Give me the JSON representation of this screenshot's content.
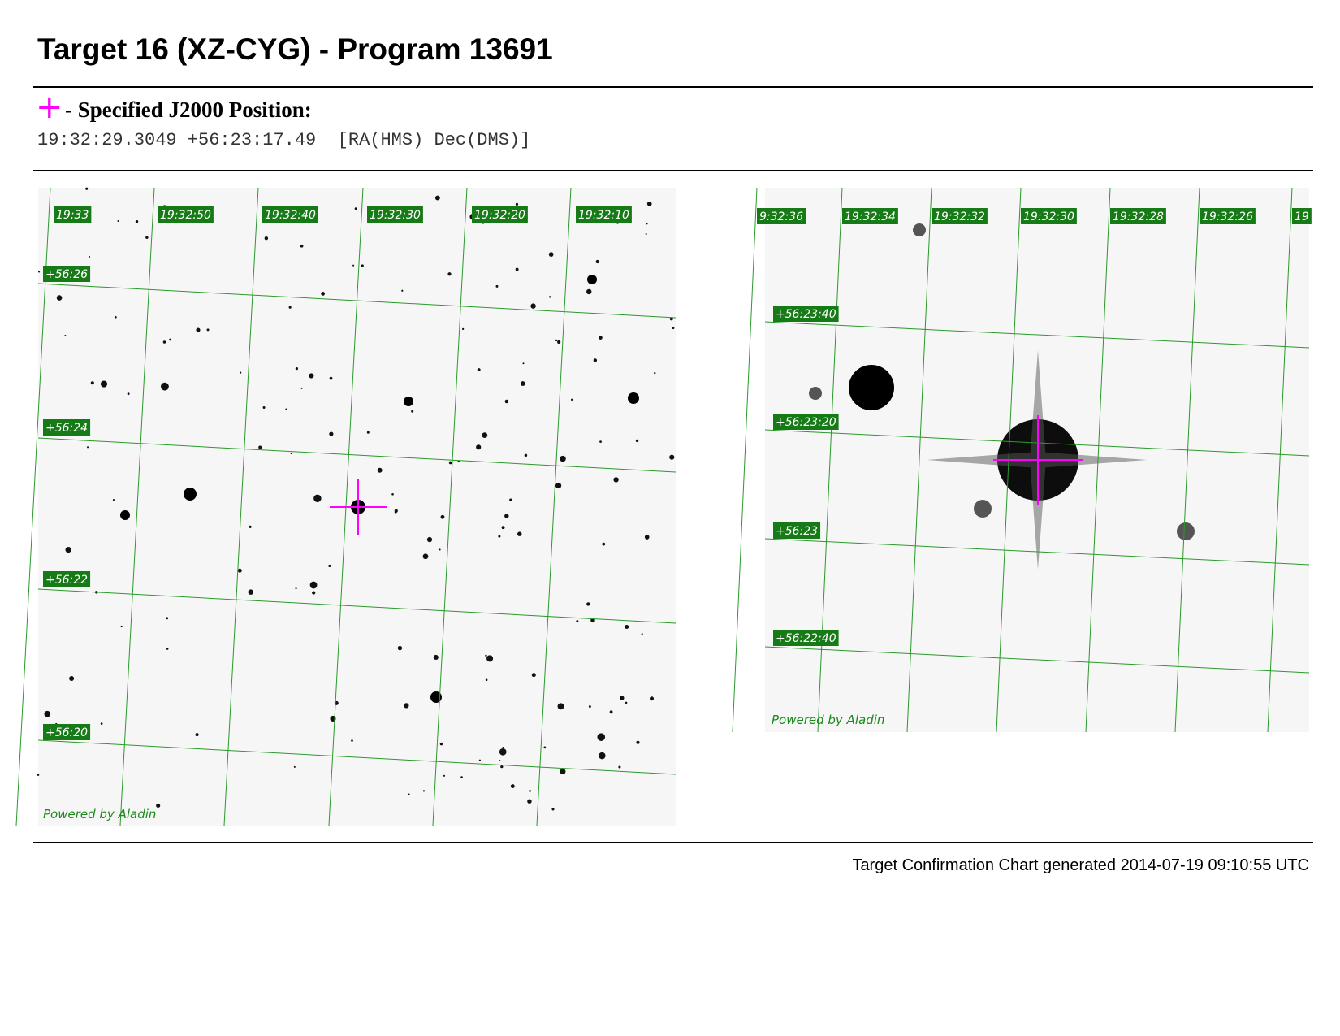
{
  "header": {
    "title": "Target 16 (XZ-CYG) - Program 13691"
  },
  "position": {
    "label": "- Specified J2000 Position:",
    "coordinates": "19:32:29.3049 +56:23:17.49",
    "format": "[RA(HMS) Dec(DMS)]"
  },
  "images": [
    {
      "ra_labels": [
        "19:33",
        "19:32:50",
        "19:32:40",
        "19:32:30",
        "19:32:20",
        "19:32:10"
      ],
      "dec_labels": [
        "+56:26",
        "+56:24",
        "+56:22",
        "+56:20"
      ],
      "credit": "Powered by Aladin"
    },
    {
      "ra_labels": [
        "9:32:36",
        "19:32:34",
        "19:32:32",
        "19:32:30",
        "19:32:28",
        "19:32:26",
        "19"
      ],
      "dec_labels": [
        "+56:23:40",
        "+56:23:20",
        "+56:23",
        "+56:22:40"
      ],
      "credit": "Powered by Aladin"
    }
  ],
  "footer": "Target Confirmation Chart generated 2014-07-19 09:10:55 UTC"
}
